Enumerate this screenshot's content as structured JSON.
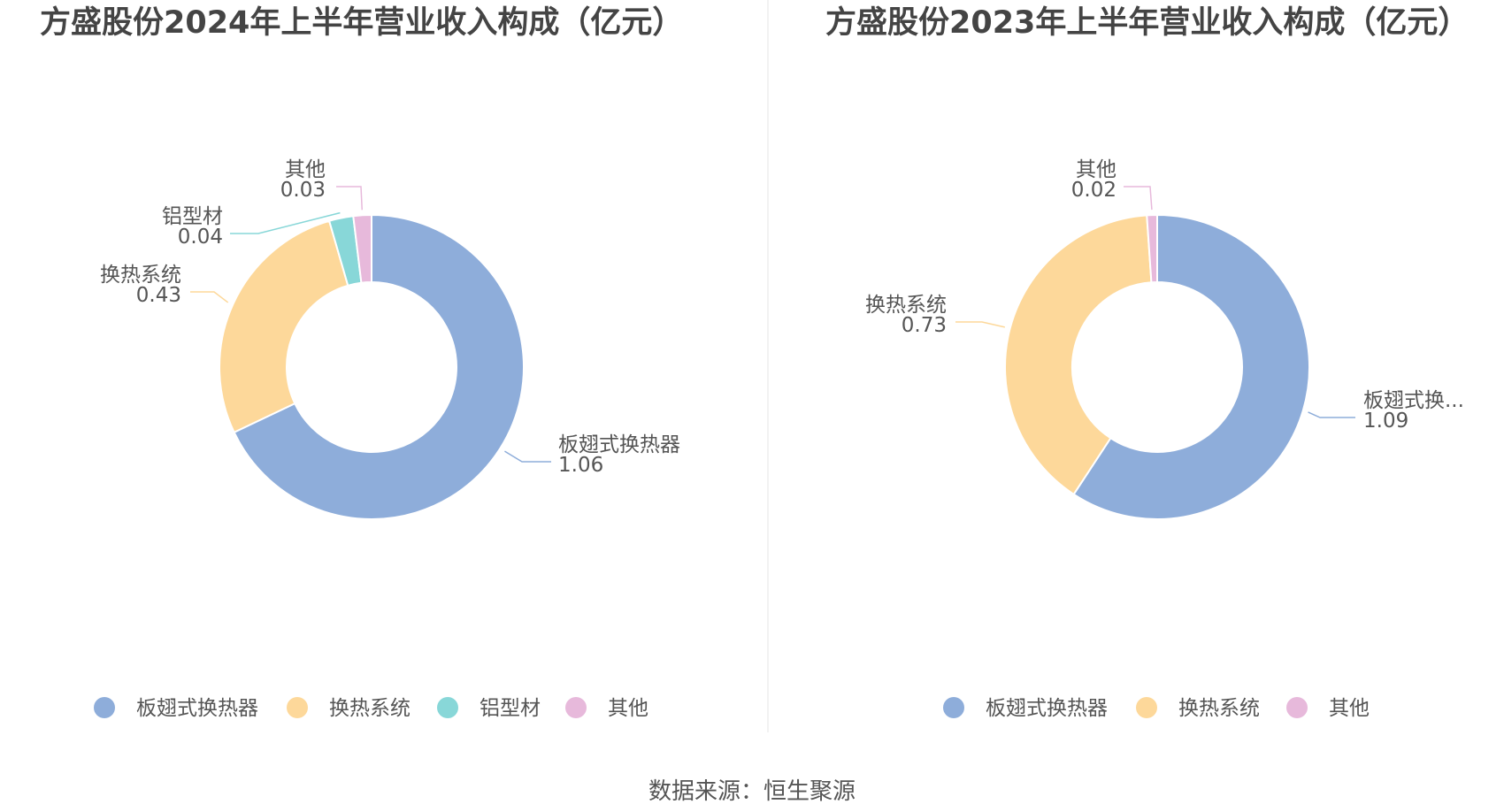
{
  "footer": {
    "source": "数据来源：恒生聚源"
  },
  "chart_data": [
    {
      "type": "pie",
      "title": "方盛股份2024年上半年营业收入构成（亿元）",
      "categories": [
        "板翅式换热器",
        "换热系统",
        "铝型材",
        "其他"
      ],
      "values": [
        1.06,
        0.43,
        0.04,
        0.03
      ],
      "value_labels": [
        "1.06",
        "0.43",
        "0.04",
        "0.03"
      ],
      "slice_labels": [
        "板翅式换热器",
        "换热系统",
        "铝型材",
        "其他"
      ],
      "colors": [
        "#8eadda",
        "#fdd89a",
        "#88d7d8",
        "#e7b9db"
      ],
      "legend": [
        "板翅式换热器",
        "换热系统",
        "铝型材",
        "其他"
      ],
      "legend_position": "bottom"
    },
    {
      "type": "pie",
      "title": "方盛股份2023年上半年营业收入构成（亿元）",
      "categories": [
        "板翅式换热器",
        "换热系统",
        "其他"
      ],
      "values": [
        1.09,
        0.73,
        0.02
      ],
      "value_labels": [
        "1.09",
        "0.73",
        "0.02"
      ],
      "slice_labels": [
        "板翅式换...",
        "换热系统",
        "其他"
      ],
      "colors": [
        "#8eadda",
        "#fdd89a",
        "#e7b9db"
      ],
      "legend": [
        "板翅式换热器",
        "换热系统",
        "其他"
      ],
      "legend_position": "bottom"
    }
  ]
}
